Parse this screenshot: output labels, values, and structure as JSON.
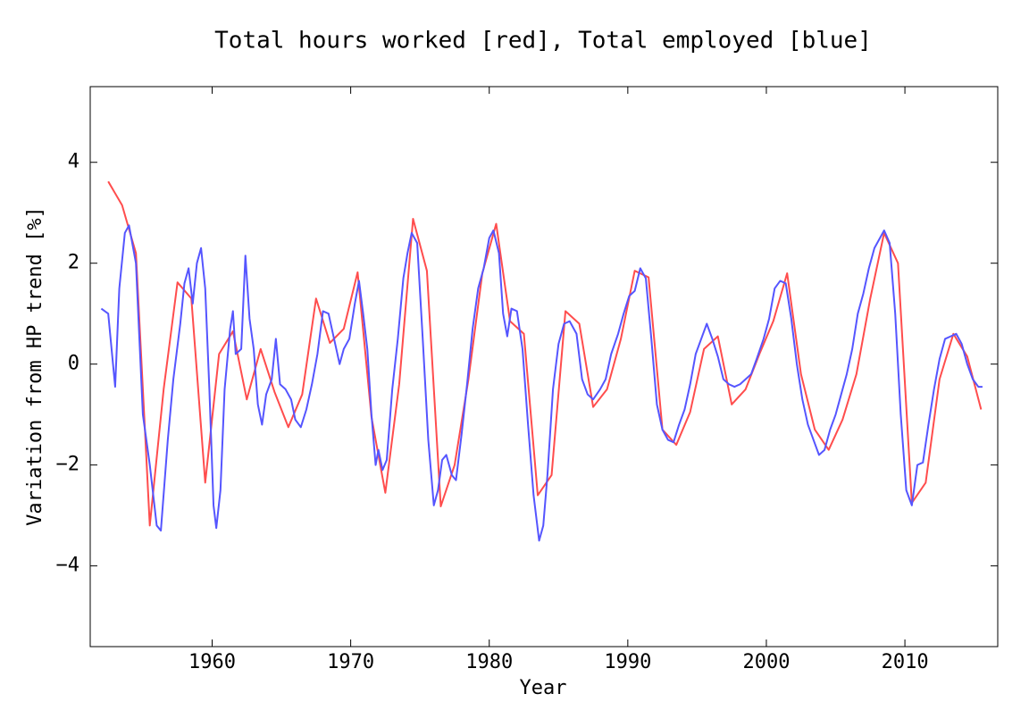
{
  "chart_data": {
    "type": "line",
    "title": "Total hours worked [red], Total employed [blue]",
    "x_label": "Year",
    "y_label": "Variation from HP trend [%]",
    "xlim": [
      1951.2,
      2016.7
    ],
    "ylim": [
      -5.6,
      5.5
    ],
    "xticks": [
      1960,
      1970,
      1980,
      1990,
      2000,
      2010
    ],
    "yticks": [
      {
        "value": -4,
        "label": "−4"
      },
      {
        "value": -2,
        "label": "−2"
      },
      0,
      2,
      4
    ],
    "grid": false,
    "series": [
      {
        "name": "Total hours worked",
        "color": "#ff4d4d",
        "x": [
          1952.5,
          1953.5,
          1954.5,
          1955.5,
          1956.5,
          1957.5,
          1958.5,
          1959.5,
          1960.5,
          1961.5,
          1962.5,
          1963.5,
          1964.5,
          1965.5,
          1966.5,
          1967.5,
          1968.5,
          1969.5,
          1970.5,
          1971.5,
          1972.5,
          1973.5,
          1974.5,
          1975.5,
          1976.5,
          1977.5,
          1978.5,
          1979.5,
          1980.5,
          1981.5,
          1982.5,
          1983.5,
          1984.5,
          1985.5,
          1986.5,
          1987.5,
          1988.5,
          1989.5,
          1990.5,
          1991.5,
          1992.5,
          1993.5,
          1994.5,
          1995.5,
          1996.5,
          1997.5,
          1998.5,
          1999.5,
          2000.5,
          2001.5,
          2002.5,
          2003.5,
          2004.5,
          2005.5,
          2006.5,
          2007.5,
          2008.5,
          2009.5,
          2010.5,
          2011.5,
          2012.5,
          2013.5,
          2014.5,
          2015.5
        ],
        "values": [
          3.62,
          3.15,
          2.2,
          -3.2,
          -0.5,
          1.62,
          1.3,
          -2.35,
          0.2,
          0.65,
          -0.7,
          0.3,
          -0.55,
          -1.25,
          -0.6,
          1.3,
          0.42,
          0.7,
          1.82,
          -1.05,
          -2.55,
          -0.4,
          2.88,
          1.85,
          -2.82,
          -2.0,
          -0.3,
          1.8,
          2.78,
          0.85,
          0.6,
          -2.6,
          -2.2,
          1.05,
          0.8,
          -0.85,
          -0.5,
          0.5,
          1.85,
          1.72,
          -1.3,
          -1.6,
          -0.95,
          0.3,
          0.55,
          -0.8,
          -0.5,
          0.2,
          0.85,
          1.8,
          -0.2,
          -1.3,
          -1.7,
          -1.1,
          -0.2,
          1.3,
          2.6,
          2.0,
          -2.75,
          -2.35,
          -0.3,
          0.6,
          0.15,
          -0.9
        ]
      },
      {
        "name": "Total employed",
        "color": "#5555ff",
        "x": [
          1952.0,
          1952.5,
          1953.0,
          1953.3,
          1953.7,
          1954.0,
          1954.5,
          1955.0,
          1955.5,
          1956.0,
          1956.3,
          1956.8,
          1957.2,
          1957.7,
          1958.0,
          1958.3,
          1958.6,
          1958.9,
          1959.2,
          1959.5,
          1959.8,
          1960.1,
          1960.3,
          1960.6,
          1960.9,
          1961.3,
          1961.5,
          1961.7,
          1962.1,
          1962.4,
          1962.7,
          1963.0,
          1963.3,
          1963.6,
          1963.9,
          1964.3,
          1964.6,
          1964.9,
          1965.3,
          1965.7,
          1966.0,
          1966.4,
          1966.8,
          1967.2,
          1967.6,
          1968.0,
          1968.4,
          1968.8,
          1969.2,
          1969.5,
          1969.9,
          1970.3,
          1970.6,
          1970.9,
          1971.2,
          1971.5,
          1971.8,
          1972.0,
          1972.3,
          1972.6,
          1973.0,
          1973.4,
          1973.8,
          1974.1,
          1974.4,
          1974.8,
          1975.2,
          1975.6,
          1976.0,
          1976.3,
          1976.6,
          1976.9,
          1977.3,
          1977.6,
          1978.0,
          1978.4,
          1978.8,
          1979.2,
          1979.6,
          1980.0,
          1980.3,
          1980.7,
          1981.0,
          1981.3,
          1981.6,
          1982.0,
          1982.4,
          1982.8,
          1983.2,
          1983.6,
          1983.9,
          1984.2,
          1984.6,
          1985.0,
          1985.4,
          1985.8,
          1986.3,
          1986.7,
          1987.1,
          1987.5,
          1988.0,
          1988.4,
          1988.8,
          1989.3,
          1989.7,
          1990.1,
          1990.5,
          1990.9,
          1991.3,
          1991.7,
          1992.1,
          1992.5,
          1992.9,
          1993.3,
          1993.7,
          1994.1,
          1994.5,
          1994.9,
          1995.3,
          1995.7,
          1996.1,
          1996.5,
          1996.9,
          1997.3,
          1997.7,
          1998.1,
          1998.5,
          1998.9,
          1999.3,
          1999.8,
          2000.2,
          2000.6,
          2001.0,
          2001.4,
          2001.8,
          2002.2,
          2002.6,
          2003.0,
          2003.4,
          2003.8,
          2004.2,
          2004.6,
          2005.0,
          2005.4,
          2005.8,
          2006.2,
          2006.6,
          2007.0,
          2007.4,
          2007.8,
          2008.2,
          2008.5,
          2008.9,
          2009.3,
          2009.7,
          2010.1,
          2010.5,
          2010.9,
          2011.3,
          2011.7,
          2012.1,
          2012.5,
          2012.9,
          2013.3,
          2013.7,
          2014.1,
          2014.5,
          2014.9,
          2015.3,
          2015.6
        ],
        "values": [
          1.1,
          1.0,
          -0.45,
          1.5,
          2.6,
          2.75,
          2.0,
          -1.0,
          -2.0,
          -3.2,
          -3.3,
          -1.5,
          -0.3,
          0.8,
          1.6,
          1.9,
          1.2,
          2.0,
          2.3,
          1.5,
          -0.5,
          -2.8,
          -3.25,
          -2.5,
          -0.5,
          0.7,
          1.05,
          0.2,
          0.3,
          2.15,
          0.9,
          0.3,
          -0.8,
          -1.2,
          -0.6,
          -0.3,
          0.5,
          -0.4,
          -0.5,
          -0.7,
          -1.1,
          -1.25,
          -0.9,
          -0.4,
          0.2,
          1.05,
          1.0,
          0.5,
          0.0,
          0.3,
          0.5,
          1.2,
          1.65,
          1.0,
          0.3,
          -1.0,
          -2.0,
          -1.7,
          -2.1,
          -1.9,
          -0.5,
          0.5,
          1.7,
          2.2,
          2.6,
          2.4,
          0.5,
          -1.5,
          -2.8,
          -2.5,
          -1.9,
          -1.8,
          -2.2,
          -2.3,
          -1.4,
          -0.4,
          0.7,
          1.5,
          1.9,
          2.5,
          2.65,
          2.2,
          1.0,
          0.55,
          1.1,
          1.05,
          0.3,
          -1.2,
          -2.6,
          -3.5,
          -3.2,
          -2.2,
          -0.5,
          0.4,
          0.8,
          0.85,
          0.6,
          -0.3,
          -0.6,
          -0.7,
          -0.5,
          -0.3,
          0.2,
          0.6,
          1.0,
          1.35,
          1.45,
          1.9,
          1.7,
          0.5,
          -0.8,
          -1.3,
          -1.5,
          -1.55,
          -1.2,
          -0.9,
          -0.4,
          0.2,
          0.5,
          0.8,
          0.5,
          0.15,
          -0.3,
          -0.4,
          -0.45,
          -0.4,
          -0.3,
          -0.2,
          0.1,
          0.5,
          0.9,
          1.5,
          1.65,
          1.6,
          0.9,
          0.0,
          -0.7,
          -1.2,
          -1.5,
          -1.8,
          -1.7,
          -1.3,
          -1.0,
          -0.6,
          -0.2,
          0.3,
          1.0,
          1.4,
          1.9,
          2.3,
          2.5,
          2.65,
          2.4,
          1.0,
          -1.0,
          -2.5,
          -2.8,
          -2.0,
          -1.95,
          -1.2,
          -0.5,
          0.1,
          0.5,
          0.55,
          0.6,
          0.4,
          0.0,
          -0.3,
          -0.45,
          -0.45
        ]
      }
    ]
  }
}
